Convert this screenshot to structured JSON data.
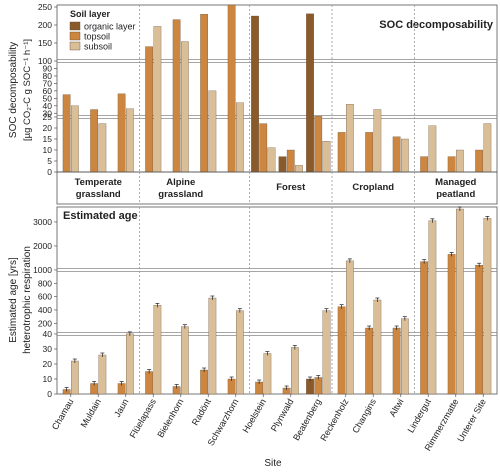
{
  "chart_data": [
    {
      "type": "bar",
      "title": "SOC decomposability",
      "ylabel": "SOC decomposability",
      "ylabel_units": "[µg CO₂-C g SOC⁻¹ h⁻¹]",
      "legend_title": "Soil layer",
      "legend_position": "top-left",
      "axis_break": "broken y-axis (0–25, 25–100, 100–250)",
      "yticks": [
        "0",
        "5",
        "10",
        "15",
        "20",
        "25",
        "30",
        "40",
        "50",
        "60",
        "70",
        "80",
        "90",
        "100",
        "150",
        "200",
        "250"
      ],
      "categories": [
        "Chamau",
        "Muldain",
        "Jaun",
        "Flüelapass",
        "Bielenhorn",
        "Radönt",
        "Schwarzhorn",
        "Hoelstein",
        "Plynwald",
        "Beatenberg",
        "Reckenholz",
        "Changins",
        "Altwi",
        "Lindergut",
        "Rimmerzmatte",
        "Unterer Site"
      ],
      "series": [
        {
          "name": "organic layer",
          "color": "#8a5a2b",
          "values": [
            null,
            null,
            null,
            null,
            null,
            null,
            null,
            225,
            7,
            231,
            null,
            null,
            null,
            null,
            null,
            null
          ]
        },
        {
          "name": "topsoil",
          "color": "#cd8640",
          "values": [
            55,
            35,
            56,
            140,
            215,
            230,
            260,
            22,
            10,
            26,
            18,
            18,
            16,
            7,
            7,
            10
          ]
        },
        {
          "name": "subsoil",
          "color": "#d9be98",
          "values": [
            40,
            22,
            36,
            196,
            154,
            60,
            44,
            11,
            3,
            14,
            42,
            35,
            15,
            21,
            10,
            22
          ]
        }
      ],
      "groups": [
        {
          "label": "Temperate grassland",
          "label_lines": [
            "Temperate",
            "grassland"
          ]
        },
        {
          "label": "Alpine grassland",
          "label_lines": [
            "Alpine",
            "grassland"
          ]
        },
        {
          "label": "Forest",
          "label_lines": [
            "Forest"
          ]
        },
        {
          "label": "Cropland",
          "label_lines": [
            "Cropland"
          ]
        },
        {
          "label": "Managed peatland",
          "label_lines": [
            "Managed",
            "peatland"
          ]
        }
      ]
    },
    {
      "type": "bar",
      "title": "Estimated age",
      "ylabel": "Estimated age [yrs]",
      "ylabel2": "heterotrophic respiration",
      "xlabel": "Site",
      "axis_break": "broken y-axis (0–40, 40–1000, 1000–3000+)",
      "yticks": [
        "0",
        "10",
        "20",
        "30",
        "40",
        "200",
        "400",
        "600",
        "800",
        "1000",
        "2000",
        "3000"
      ],
      "categories": [
        "Chamau",
        "Muldain",
        "Jaun",
        "Flüelapass",
        "Bielenhorn",
        "Radönt",
        "Schwarzhorn",
        "Hoelstein",
        "Plynwald",
        "Beatenberg",
        "Reckenholz",
        "Changins",
        "Altwi",
        "Lindergut",
        "Rimmerzmatte",
        "Unterer Site"
      ],
      "series": [
        {
          "name": "organic layer",
          "color": "#8a5a2b",
          "values": [
            null,
            null,
            null,
            null,
            null,
            null,
            null,
            null,
            null,
            10,
            null,
            null,
            null,
            null,
            null,
            null
          ]
        },
        {
          "name": "topsoil",
          "color": "#cd8640",
          "values": [
            3,
            7,
            7,
            15,
            5,
            16,
            10,
            8,
            4,
            11,
            450,
            130,
            130,
            1350,
            1650,
            1200
          ]
        },
        {
          "name": "subsoil",
          "color": "#d9be98",
          "values": [
            22,
            26,
            42,
            470,
            150,
            580,
            390,
            27,
            31,
            390,
            1380,
            550,
            270,
            3050,
            3800,
            3150
          ]
        }
      ]
    }
  ]
}
